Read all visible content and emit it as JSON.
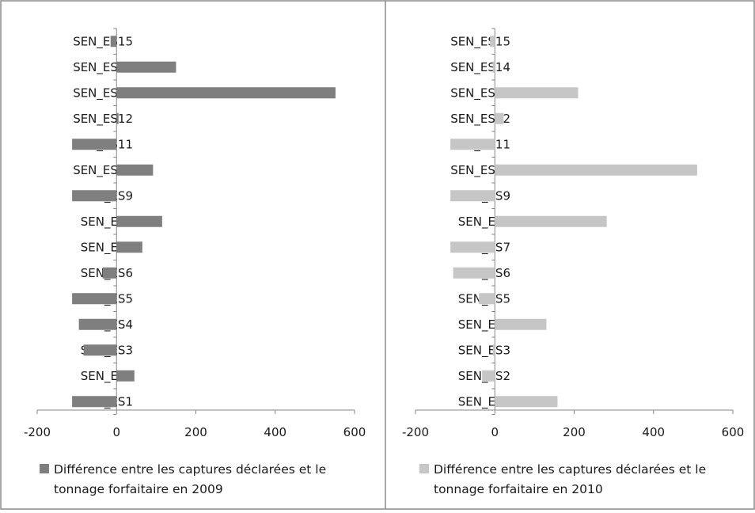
{
  "chart_data": [
    {
      "type": "bar",
      "orientation": "horizontal",
      "categories": [
        "SEN_ES1",
        "SEN_ES2",
        "SEN_ES3",
        "SEN_ES4",
        "SEN_ES5",
        "SEN_ES6",
        "SEN_ES7",
        "SEN_ES8",
        "SEN_ES9",
        "SEN_ES10",
        "SEN_ES11",
        "SEN_ES12",
        "SEN_ES13",
        "SEN_ES14",
        "SEN_ES15"
      ],
      "series": [
        {
          "name": "Différence entre les captures déclarées et le tonnage forfaitaire en 2009",
          "legend_lines": [
            "Différence entre les captures déclarées et le",
            "tonnage forfaitaire en 2009"
          ],
          "color": "#7f7f7f",
          "values": [
            -112,
            45,
            -83,
            -95,
            -112,
            -35,
            65,
            115,
            -112,
            92,
            -112,
            5,
            552,
            150,
            -15
          ]
        }
      ],
      "xlim": [
        -200,
        600
      ],
      "xticks": [
        "-200",
        "0",
        "200",
        "400",
        "600"
      ],
      "grid": false,
      "legend_position": "bottom"
    },
    {
      "type": "bar",
      "orientation": "horizontal",
      "categories": [
        "SEN_ES1",
        "SEN_ES2",
        "SEN_ES3",
        "SEN_ES4",
        "SEN_ES5",
        "SEN_ES6",
        "SEN_ES7",
        "SEN_ES8",
        "SEN_ES9",
        "SEN_ES10",
        "SEN_ES11",
        "SEN_ES12",
        "SEN_ES13",
        "SEN_ES14",
        "SEN_ES15"
      ],
      "series": [
        {
          "name": "Différence entre les captures déclarées et le tonnage forfaitaire en 2010",
          "legend_lines": [
            "Différence entre les captures déclarées et le",
            "tonnage forfaitaire en 2010"
          ],
          "color": "#c6c6c6",
          "values": [
            158,
            -32,
            -5,
            130,
            -40,
            -105,
            -112,
            282,
            -112,
            510,
            -112,
            22,
            210,
            -5,
            -12
          ]
        }
      ],
      "xlim": [
        -200,
        600
      ],
      "xticks": [
        "-200",
        "0",
        "200",
        "400",
        "600"
      ],
      "grid": false,
      "legend_position": "bottom"
    }
  ]
}
